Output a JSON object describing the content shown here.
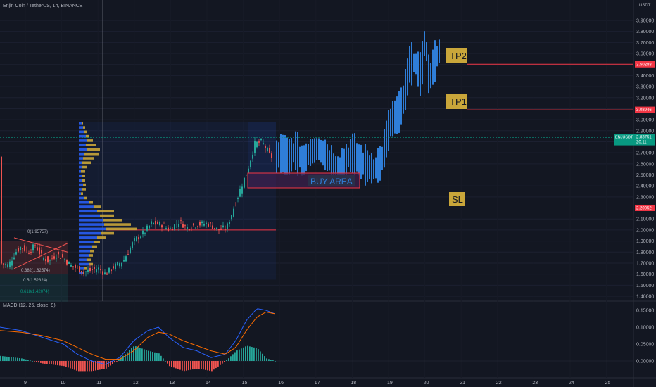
{
  "header": {
    "title": "Enjin Coin / TetherUS, 1h, BINANCE",
    "currency": "USDT",
    "macd_label": "MACD (12, 26, close, 9)"
  },
  "chart_data": {
    "type": "candlestick",
    "price_axis": {
      "ticks": [
        "3.90000",
        "3.80000",
        "3.70000",
        "3.60000",
        "3.50000",
        "3.40000",
        "3.30000",
        "3.20000",
        "3.10000",
        "3.00000",
        "2.90000",
        "2.80000",
        "2.70000",
        "2.60000",
        "2.50000",
        "2.40000",
        "2.30000",
        "2.20000",
        "2.10000",
        "2.00000",
        "1.90000",
        "1.80000",
        "1.70000",
        "1.60000",
        "1.50000",
        "1.40000"
      ],
      "range": [
        1.35,
        4.0
      ]
    },
    "macd_axis": {
      "ticks": [
        "0.15000",
        "0.10000",
        "0.05000",
        "0.00000"
      ]
    },
    "time_axis": {
      "labels": [
        "9",
        "10",
        "11",
        "12",
        "13",
        "14",
        "15",
        "16",
        "17",
        "18",
        "19",
        "20",
        "21",
        "22",
        "23",
        "24",
        "25"
      ]
    },
    "price_labels": [
      {
        "value": 3.50288,
        "text": "3.50288",
        "color": "#f23645"
      },
      {
        "value": 3.08946,
        "text": "3.08946",
        "color": "#f23645"
      },
      {
        "value": 2.83751,
        "text": "2.83751",
        "symbol": "ENJUSDT",
        "countdown": "20:11",
        "color": "#089981"
      },
      {
        "value": 2.20052,
        "text": "2.20052",
        "color": "#f23645"
      }
    ],
    "annotations": {
      "tp2": "TP2",
      "tp1": "TP1",
      "sl": "SL",
      "buy_area": "BUY AREA"
    },
    "fib": [
      {
        "text": "0(1.95757)",
        "value": 1.95757
      },
      {
        "text": "0.382(1.62574)",
        "value": 1.62574
      },
      {
        "text": "0.5(1.52324)",
        "value": 1.52324
      },
      {
        "text": "0.618(1.42074)",
        "value": 1.42074
      }
    ],
    "volume_profile_poc": 2.0,
    "series_colors": {
      "up": "#26a69a",
      "down": "#ef5350",
      "projection": "#2f7ed8",
      "macd": "#2962ff",
      "signal": "#ff6d00"
    }
  }
}
